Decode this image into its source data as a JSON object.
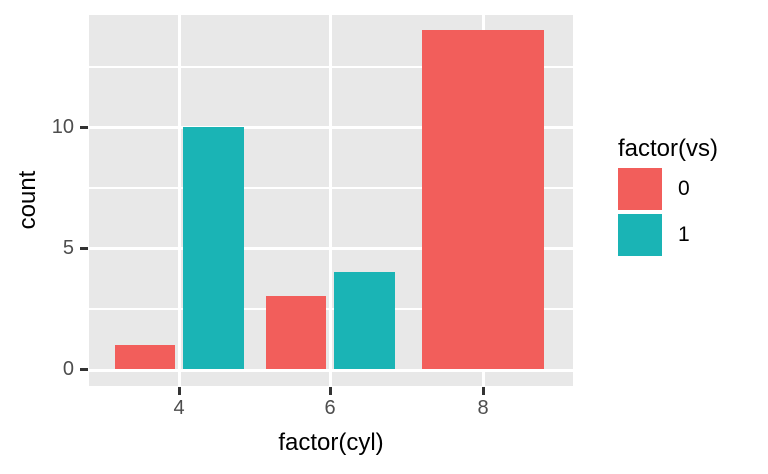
{
  "chart_data": {
    "type": "bar",
    "title": "",
    "xlabel": "factor(cyl)",
    "ylabel": "count",
    "legend_title": "factor(vs)",
    "legend_position": "right",
    "categories": [
      "4",
      "6",
      "8"
    ],
    "series": [
      {
        "name": "0",
        "color": "#F25E5B",
        "values": [
          1,
          3,
          14
        ]
      },
      {
        "name": "1",
        "color": "#1AB4B5",
        "values": [
          10,
          4,
          0
        ]
      }
    ],
    "y_ticks": [
      0,
      5,
      10
    ],
    "y_minor_ticks": [
      2.5,
      7.5,
      12.5
    ],
    "ylim": [
      0,
      14.7
    ],
    "grid": true,
    "panel_background": "#E8E8E8",
    "grid_color": "#FFFFFF",
    "tick_label_color": "#4D4D4D",
    "tick_mark_color": "#333333"
  },
  "legend": {
    "title": "factor(vs)",
    "items": [
      {
        "label": "0",
        "color": "#F25E5B"
      },
      {
        "label": "1",
        "color": "#1AB4B5"
      }
    ]
  }
}
